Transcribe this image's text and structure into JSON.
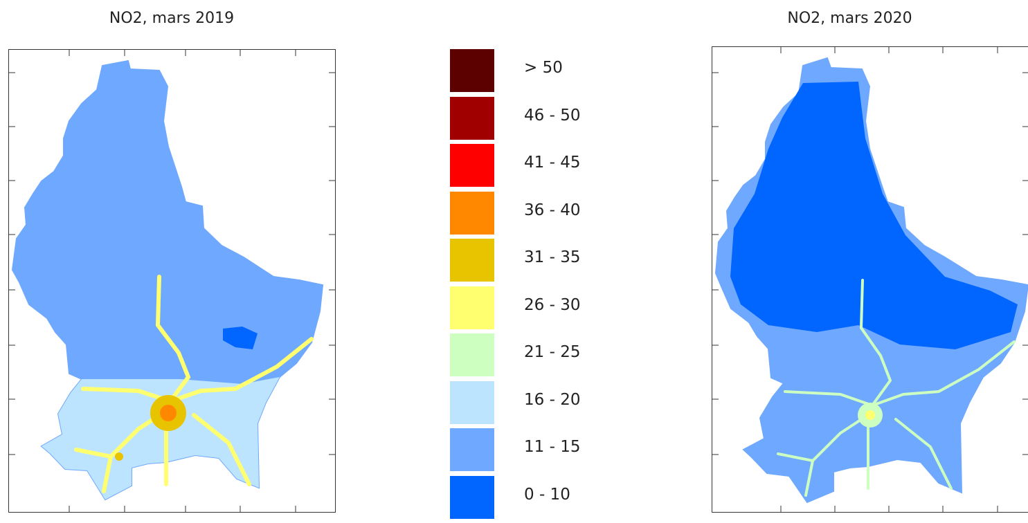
{
  "maps": [
    {
      "id": "map-2019",
      "title": "NO2, mars 2019"
    },
    {
      "id": "map-2020",
      "title": "NO2, mars 2020"
    }
  ],
  "legend": [
    {
      "label": "> 50",
      "color": "#5c0000"
    },
    {
      "label": "46 - 50",
      "color": "#a00000"
    },
    {
      "label": "41 - 45",
      "color": "#ff0000"
    },
    {
      "label": "36 - 40",
      "color": "#ff8800"
    },
    {
      "label": "31 - 35",
      "color": "#e8c400"
    },
    {
      "label": "26 - 30",
      "color": "#ffff70"
    },
    {
      "label": "21 - 25",
      "color": "#ccffc0"
    },
    {
      "label": "16 - 20",
      "color": "#bde4ff"
    },
    {
      "label": "11 - 15",
      "color": "#6fa8ff"
    },
    {
      "label": "0 - 10",
      "color": "#0066ff"
    }
  ]
}
